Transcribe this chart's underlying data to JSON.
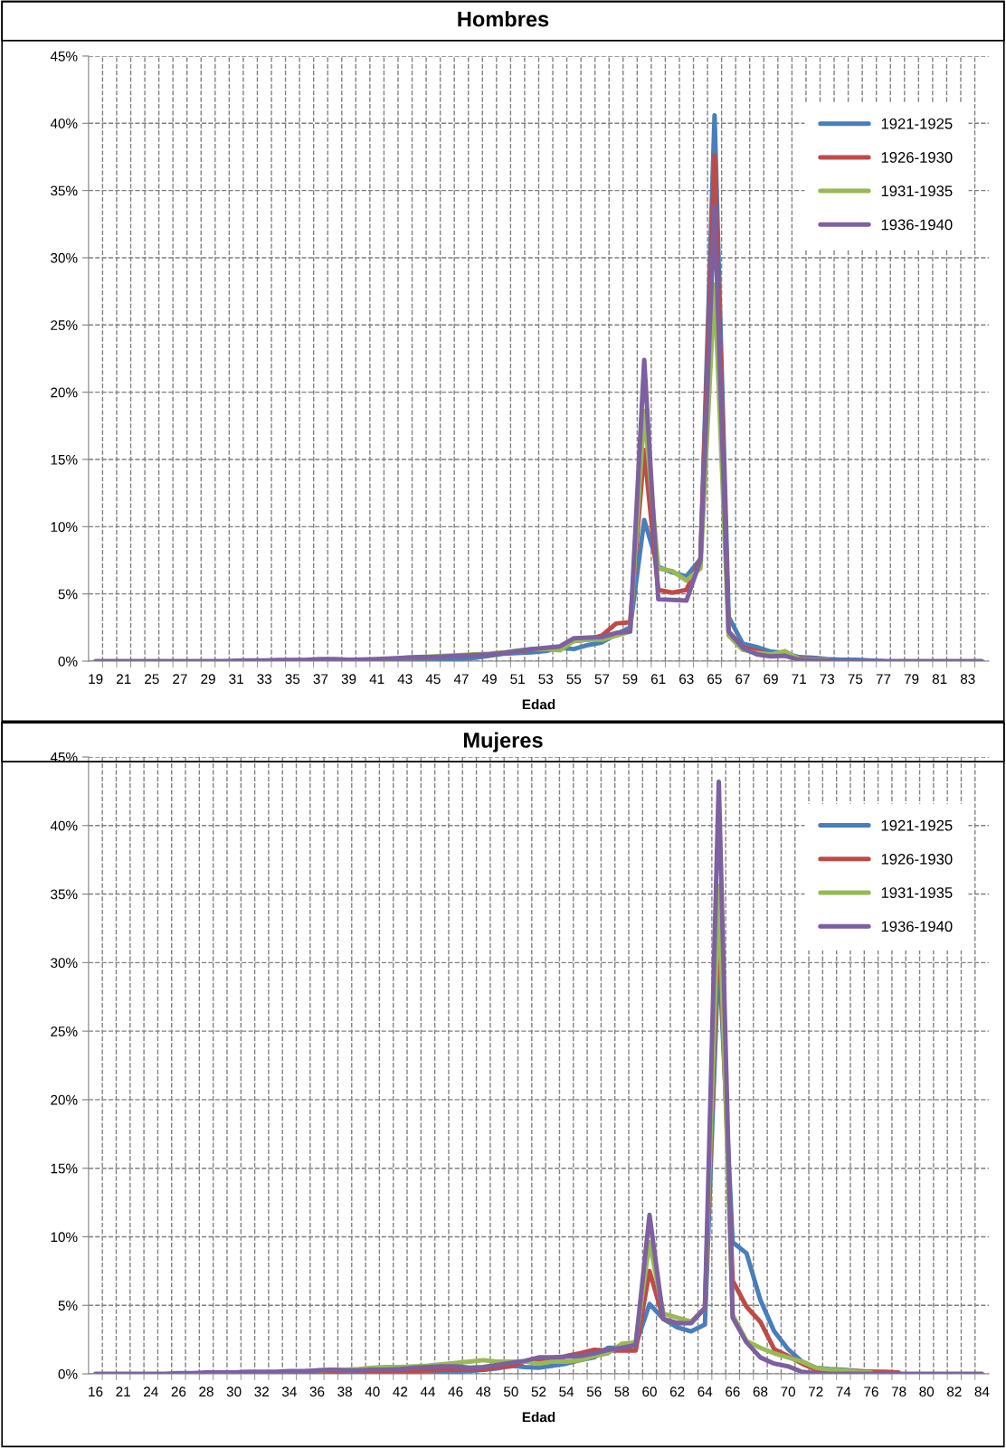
{
  "chart_data": [
    {
      "type": "line",
      "title": "Hombres",
      "xlabel": "Edad",
      "categories": [
        "19",
        null,
        "21",
        null,
        "25",
        null,
        "27",
        null,
        "29",
        null,
        "31",
        null,
        "33",
        null,
        "35",
        null,
        "37",
        null,
        "39",
        null,
        "41",
        null,
        "43",
        null,
        "45",
        null,
        "47",
        null,
        "49",
        null,
        "51",
        null,
        "53",
        null,
        "55",
        null,
        "57",
        null,
        "59",
        null,
        "61",
        null,
        "63",
        null,
        "65",
        null,
        "67",
        null,
        "69",
        null,
        "71",
        null,
        "73",
        null,
        "75",
        null,
        "77",
        null,
        "79",
        null,
        "81",
        null,
        "83",
        null
      ],
      "series": [
        {
          "name": "1921-1925",
          "color": "#4a7ebb",
          "values": [
            null,
            null,
            null,
            null,
            null,
            null,
            null,
            null,
            null,
            null,
            null,
            null,
            null,
            null,
            0.05,
            0.05,
            0.05,
            0.05,
            0.05,
            0.08,
            0.1,
            0.12,
            0.15,
            0.15,
            0.1,
            0.05,
            0.15,
            0.25,
            0.4,
            0.55,
            0.6,
            0.65,
            0.75,
            1.0,
            0.9,
            1.2,
            1.4,
            2.0,
            2.5,
            10.5,
            7.0,
            6.6,
            6.3,
            7.6,
            40.6,
            3.3,
            1.3,
            1.05,
            0.7,
            0.6,
            0.3,
            0.25,
            0.15,
            0.1,
            0.1,
            0.05,
            0,
            null,
            null,
            null,
            null,
            null,
            null,
            null
          ]
        },
        {
          "name": "1926-1930",
          "color": "#be4b48",
          "values": [
            null,
            null,
            null,
            null,
            null,
            null,
            null,
            null,
            null,
            null,
            null,
            null,
            null,
            null,
            null,
            null,
            null,
            null,
            null,
            null,
            null,
            null,
            0.2,
            0.25,
            null,
            0.35,
            0.4,
            0.45,
            0.5,
            0.6,
            0.75,
            0.85,
            0.95,
            1.05,
            1.5,
            1.6,
            1.9,
            2.8,
            2.9,
            15.7,
            5.3,
            5.1,
            5.3,
            7.6,
            37.6,
            2.2,
            1.05,
            0.75,
            0.5,
            0.5,
            0.2,
            0.15,
            0.1,
            null,
            null,
            null,
            null,
            null,
            null,
            null,
            null,
            null,
            null,
            null
          ]
        },
        {
          "name": "1931-1935",
          "color": "#98b954",
          "values": [
            null,
            null,
            null,
            null,
            null,
            null,
            null,
            null,
            null,
            null,
            null,
            null,
            null,
            null,
            null,
            null,
            null,
            null,
            null,
            null,
            null,
            null,
            0.25,
            0.3,
            0.35,
            0.4,
            0.45,
            0.5,
            0.55,
            0.65,
            0.8,
            0.9,
            0.9,
            0.8,
            1.5,
            1.6,
            1.6,
            1.9,
            2.2,
            18.6,
            6.9,
            6.7,
            6.0,
            6.9,
            28.0,
            1.9,
            0.85,
            0.6,
            0.5,
            0.75,
            0.15,
            0.1,
            0.1,
            null,
            null,
            null,
            null,
            null,
            null,
            null,
            null,
            null,
            null,
            null
          ]
        },
        {
          "name": "1936-1940",
          "color": "#7d60a0",
          "values": [
            0,
            0,
            0,
            0,
            0,
            0,
            0,
            0,
            0,
            0,
            0.03,
            0.05,
            0.05,
            0.08,
            0.08,
            0.1,
            0.15,
            0.15,
            0.1,
            0.12,
            0.15,
            0.2,
            0.25,
            0.3,
            0.3,
            0.35,
            0.4,
            0.45,
            0.5,
            0.6,
            0.75,
            0.9,
            1.0,
            1.1,
            1.7,
            1.75,
            1.8,
            2.1,
            2.2,
            22.4,
            4.6,
            4.55,
            4.5,
            7.5,
            33.8,
            2.2,
            1.0,
            0.5,
            0.35,
            0.4,
            0.1,
            0.05,
            0.05,
            0,
            0,
            0,
            0,
            0,
            0,
            0,
            0,
            0,
            0,
            0
          ]
        }
      ],
      "ylim": [
        0,
        45
      ],
      "yticks": [
        {
          "value": 0,
          "label": "0%"
        },
        {
          "value": 5,
          "label": "5%"
        },
        {
          "value": 10,
          "label": "10%"
        },
        {
          "value": 15,
          "label": "15%"
        },
        {
          "value": 20,
          "label": "20%"
        },
        {
          "value": 25,
          "label": "25%"
        },
        {
          "value": 30,
          "label": "30%"
        },
        {
          "value": 35,
          "label": "35%"
        },
        {
          "value": 40,
          "label": "40%"
        },
        {
          "value": 45,
          "label": "45%"
        }
      ],
      "grid": true,
      "legend": "top right",
      "line_style": "solid",
      "marker": "none"
    },
    {
      "type": "line",
      "title": "Mujeres",
      "xlabel": "Edad",
      "categories": [
        "16",
        null,
        "21",
        null,
        "24",
        null,
        "26",
        null,
        "28",
        null,
        "30",
        null,
        "32",
        null,
        "34",
        null,
        "36",
        null,
        "38",
        null,
        "40",
        null,
        "42",
        null,
        "44",
        null,
        "46",
        null,
        "48",
        null,
        "50",
        null,
        "52",
        null,
        "54",
        null,
        "56",
        null,
        "58",
        null,
        "60",
        null,
        "62",
        null,
        "64",
        null,
        "66",
        null,
        "68",
        null,
        "70",
        null,
        "72",
        null,
        "74",
        null,
        "76",
        null,
        "78",
        null,
        "80",
        null,
        "82",
        null,
        "84"
      ],
      "series": [
        {
          "name": "1921-1925",
          "color": "#4a7ebb",
          "values": [
            null,
            null,
            null,
            null,
            null,
            null,
            null,
            null,
            null,
            null,
            null,
            null,
            null,
            null,
            null,
            null,
            null,
            null,
            null,
            null,
            null,
            null,
            0.05,
            0.05,
            0.1,
            0.1,
            0.15,
            0.2,
            0.3,
            0.4,
            0.6,
            0.5,
            0.45,
            0.6,
            0.75,
            1.0,
            1.2,
            1.9,
            1.9,
            2.1,
            5.1,
            4.0,
            3.4,
            3.1,
            3.6,
            31.0,
            9.6,
            8.8,
            5.4,
            3.1,
            1.8,
            0.9,
            0.45,
            0.35,
            0.3,
            0.2,
            0.15,
            0.1,
            null,
            null,
            null,
            null,
            null,
            null,
            null
          ]
        },
        {
          "name": "1926-1930",
          "color": "#be4b48",
          "values": [
            null,
            null,
            null,
            null,
            null,
            null,
            null,
            null,
            null,
            null,
            null,
            null,
            null,
            null,
            0,
            0,
            0,
            0,
            0.05,
            0.1,
            0.1,
            0.15,
            0.15,
            0.2,
            0.25,
            0.3,
            0.3,
            0.3,
            0.3,
            0.5,
            0.55,
            0.9,
            0.9,
            1.0,
            1.3,
            1.5,
            1.75,
            1.7,
            1.7,
            1.7,
            7.5,
            4.0,
            3.7,
            3.8,
            4.8,
            33.5,
            6.8,
            4.9,
            3.8,
            1.8,
            1.3,
            0.75,
            0.3,
            0.25,
            0.2,
            0.2,
            0.15,
            0.15,
            0.1,
            null,
            null,
            null,
            null,
            null,
            null
          ]
        },
        {
          "name": "1931-1935",
          "color": "#98b954",
          "values": [
            null,
            null,
            null,
            null,
            null,
            null,
            null,
            null,
            null,
            null,
            null,
            null,
            null,
            null,
            null,
            null,
            0.25,
            0.3,
            0.3,
            0.35,
            0.45,
            0.5,
            0.5,
            0.55,
            0.6,
            0.7,
            0.8,
            0.9,
            1.0,
            0.9,
            0.9,
            0.9,
            0.75,
            0.9,
            0.9,
            1.0,
            1.3,
            1.5,
            2.2,
            2.3,
            9.6,
            4.4,
            4.1,
            3.8,
            4.8,
            35.6,
            4.3,
            2.4,
            1.9,
            1.5,
            1.2,
            0.9,
            0.45,
            0.3,
            0.25,
            0.15,
            0.1,
            null,
            null,
            null,
            null,
            null,
            null,
            null,
            null
          ]
        },
        {
          "name": "1936-1940",
          "color": "#7d60a0",
          "values": [
            0,
            0,
            0,
            0,
            0,
            0,
            0.05,
            0.05,
            0.1,
            0.1,
            0.1,
            0.15,
            0.15,
            0.15,
            0.2,
            0.2,
            0.25,
            0.3,
            0.25,
            0.25,
            0.3,
            0.3,
            0.35,
            0.45,
            0.5,
            0.55,
            0.55,
            0.45,
            0.5,
            0.65,
            0.8,
            0.95,
            1.2,
            1.2,
            1.25,
            1.3,
            1.5,
            1.75,
            1.9,
            2.1,
            11.6,
            4.0,
            3.7,
            3.7,
            4.8,
            43.2,
            4.1,
            2.3,
            1.2,
            0.75,
            0.55,
            0.15,
            0.05,
            0,
            0,
            0,
            0,
            0,
            0,
            0,
            0,
            0,
            0,
            0,
            0
          ]
        }
      ],
      "ylim": [
        0,
        45
      ],
      "yticks": [
        {
          "value": 0,
          "label": "0%"
        },
        {
          "value": 5,
          "label": "5%"
        },
        {
          "value": 10,
          "label": "10%"
        },
        {
          "value": 15,
          "label": "15%"
        },
        {
          "value": 20,
          "label": "20%"
        },
        {
          "value": 25,
          "label": "25%"
        },
        {
          "value": 30,
          "label": "30%"
        },
        {
          "value": 35,
          "label": "35%"
        },
        {
          "value": 40,
          "label": "40%"
        },
        {
          "value": 45,
          "label": "45%"
        }
      ],
      "grid": true,
      "legend": "top right",
      "line_style": "solid",
      "marker": "none"
    }
  ]
}
